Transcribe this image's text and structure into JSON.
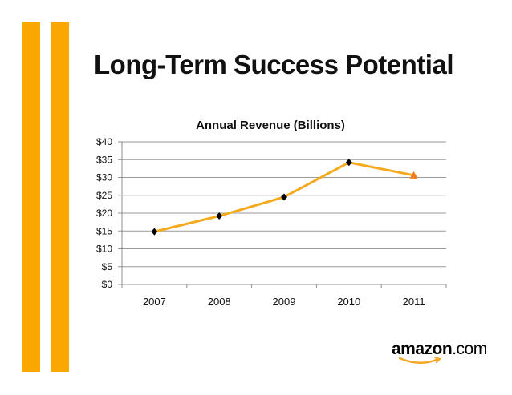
{
  "slide": {
    "title": "Long-Term Success Potential",
    "accent_color": "#FBA702",
    "logo": {
      "name": "amazon",
      "tld": ".com",
      "icon": "amazon-smile-icon"
    }
  },
  "chart_data": {
    "type": "line",
    "title": "Annual Revenue (Billions)",
    "categories": [
      "2007",
      "2008",
      "2009",
      "2010",
      "2011"
    ],
    "series": [
      {
        "name": "Annual Revenue",
        "values": [
          14.8,
          19.2,
          24.5,
          34.2,
          30.6
        ],
        "color": "#F5AA1E"
      }
    ],
    "marker_colors": [
      "#000000",
      "#000000",
      "#000000",
      "#000000",
      "#F07C1B"
    ],
    "marker_shapes": [
      "diamond",
      "diamond",
      "diamond",
      "diamond",
      "triangle"
    ],
    "yticks": [
      "$0",
      "$5",
      "$10",
      "$15",
      "$20",
      "$25",
      "$30",
      "$35",
      "$40"
    ],
    "ytick_values": [
      0,
      5,
      10,
      15,
      20,
      25,
      30,
      35,
      40
    ],
    "ylim": [
      0,
      40
    ],
    "xlabel": "",
    "ylabel": "",
    "grid": true,
    "legend": "none"
  }
}
